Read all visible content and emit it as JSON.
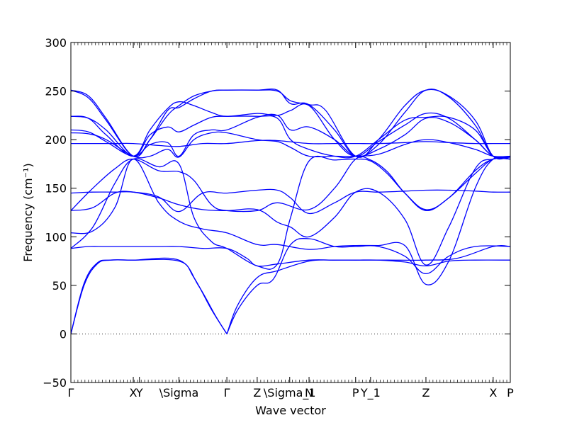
{
  "chart_data": {
    "type": "line",
    "xlabel": "Wave vector",
    "ylabel": "Frequency (cm⁻¹)",
    "ylim": [
      -50,
      300
    ],
    "yticks": [
      -50,
      0,
      50,
      100,
      150,
      200,
      250,
      300
    ],
    "grid": false,
    "legend": "none",
    "zero_reference_line": 0,
    "line_color": "#0000ff",
    "xlim": [
      0,
      100
    ],
    "high_symmetry_points": [
      {
        "label": "Γ",
        "x": 0
      },
      {
        "label": "X",
        "x": 14.2
      },
      {
        "label": "Y",
        "x": 15.6
      },
      {
        "label": "\\Sigma",
        "x": 24.6
      },
      {
        "label": "Γ",
        "x": 35.5
      },
      {
        "label": "Z",
        "x": 42.4
      },
      {
        "label": "\\Sigma_1",
        "x": 49.8
      },
      {
        "label": "N",
        "x": 54.2
      },
      {
        "label": "P",
        "x": 64.8
      },
      {
        "label": "Y_1",
        "x": 68.2
      },
      {
        "label": "Z",
        "x": 80.8
      },
      {
        "label": "X",
        "x": 96.1
      },
      {
        "label": "P",
        "x": 100
      }
    ],
    "series": [
      {
        "x": [
          0,
          3,
          6,
          9,
          14.2,
          24.6,
          29,
          33,
          35.5
        ],
        "y": [
          0,
          50,
          72,
          76,
          76,
          76,
          50,
          18,
          0
        ]
      },
      {
        "x": [
          0,
          3,
          6,
          9,
          14.2,
          24.6,
          28,
          32,
          35.5
        ],
        "y": [
          0,
          52,
          73,
          76,
          76,
          75,
          58,
          25,
          0
        ]
      },
      {
        "x": [
          35.5,
          38,
          42.4,
          47,
          54.2,
          60,
          64.8,
          70,
          76,
          80.8,
          86,
          92,
          100
        ],
        "y": [
          0,
          30,
          58,
          65,
          75,
          76,
          76,
          76,
          74,
          70,
          75,
          76,
          76
        ]
      },
      {
        "x": [
          35.5,
          38,
          42.4,
          46,
          50,
          54.2,
          60,
          64.8,
          70,
          76,
          80.8,
          86,
          92,
          100
        ],
        "y": [
          0,
          25,
          50,
          56,
          92,
          98,
          90,
          90,
          90,
          80,
          62,
          80,
          90,
          90
        ]
      },
      {
        "x": [
          0,
          4,
          8,
          14.2,
          20,
          24.6,
          30,
          35.5,
          40,
          42.4,
          47,
          54.2,
          60,
          64.8,
          72,
          80.8,
          88,
          96.1,
          100
        ],
        "y": [
          88,
          90,
          90,
          90,
          90,
          90,
          88,
          88,
          78,
          70,
          72,
          76,
          76,
          76,
          76,
          76,
          78,
          90,
          90
        ]
      },
      {
        "x": [
          0,
          5,
          10,
          14.2,
          20,
          24.6,
          30,
          35.5,
          42.4,
          47,
          54.2,
          60,
          64.8,
          70,
          76,
          80.8,
          86,
          92,
          96.1,
          100
        ],
        "y": [
          104,
          106,
          130,
          180,
          135,
          116,
          108,
          104,
          92,
          92,
          87,
          90,
          91,
          91,
          91,
          51,
          75,
          150,
          180,
          180
        ]
      },
      {
        "x": [
          0,
          5,
          10,
          14.2,
          20,
          24.6,
          30,
          35.5,
          42.4,
          47,
          50,
          54.2,
          60,
          64.8,
          70,
          76,
          80.8,
          86,
          92,
          96.1,
          100
        ],
        "y": [
          127,
          130,
          145,
          146,
          140,
          133,
          128,
          127,
          128,
          115,
          110,
          100,
          120,
          146,
          146,
          118,
          71,
          110,
          170,
          180,
          180
        ]
      },
      {
        "x": [
          0,
          5,
          10,
          14.2,
          20,
          24.6,
          30,
          35.5,
          42.4,
          47,
          50,
          54.2,
          60,
          64.8,
          70,
          76,
          80.8,
          86,
          92,
          96.1,
          100
        ],
        "y": [
          145,
          146,
          146,
          146,
          141,
          126,
          145,
          145,
          148,
          148,
          140,
          124,
          135,
          146,
          146,
          147,
          148,
          148,
          147,
          146,
          146
        ]
      },
      {
        "x": [
          0,
          5,
          10,
          14.2,
          20,
          24.6,
          28,
          32,
          35.5,
          42.4,
          47,
          54.2,
          60,
          64.8,
          68.2,
          72,
          76,
          80.8,
          86,
          92,
          96.1,
          100
        ],
        "y": [
          127,
          150,
          170,
          180,
          168,
          167,
          158,
          133,
          127,
          127,
          135,
          128,
          150,
          180,
          179,
          167,
          145,
          127,
          140,
          165,
          180,
          180
        ]
      },
      {
        "x": [
          0,
          5,
          10,
          14.2,
          20,
          24.6,
          28,
          32,
          35.5,
          42.4,
          47,
          50,
          54.2,
          60,
          64.8,
          68.2,
          72,
          76,
          80.8,
          86,
          92,
          96.1,
          100
        ],
        "y": [
          88,
          110,
          155,
          180,
          172,
          175,
          120,
          95,
          88,
          70,
          72,
          120,
          178,
          179,
          180,
          178,
          165,
          145,
          128,
          140,
          168,
          180,
          180
        ]
      },
      {
        "x": [
          0,
          4,
          8,
          14.2,
          18,
          22,
          24.6,
          28,
          32,
          35.5,
          42.4,
          47,
          50,
          54.2,
          60,
          64.8,
          70,
          76,
          80.8,
          86,
          92,
          96.1,
          100
        ],
        "y": [
          207,
          206,
          200,
          183,
          183,
          190,
          182,
          200,
          207,
          207,
          200,
          198,
          192,
          183,
          183,
          183,
          185,
          195,
          200,
          197,
          190,
          183,
          183
        ]
      },
      {
        "x": [
          0,
          4,
          8,
          14.2,
          18,
          22,
          24.6,
          28,
          32,
          35.5,
          42.4,
          47,
          50,
          54.2,
          60,
          64.8,
          70,
          76,
          80.8,
          86,
          92,
          96.1,
          100
        ],
        "y": [
          210,
          208,
          198,
          183,
          195,
          197,
          183,
          205,
          210,
          210,
          223,
          225,
          210,
          213,
          200,
          183,
          190,
          205,
          222,
          218,
          200,
          183,
          183
        ]
      },
      {
        "x": [
          0,
          4,
          8,
          14.2,
          18,
          22,
          24.6,
          28,
          32,
          35.5,
          42.4,
          47,
          50,
          54.2,
          60,
          64.8,
          70,
          76,
          80.8,
          86,
          92,
          96.1,
          100
        ],
        "y": [
          224,
          222,
          210,
          183,
          205,
          213,
          208,
          215,
          223,
          224,
          224,
          222,
          200,
          190,
          183,
          183,
          200,
          220,
          223,
          223,
          210,
          183,
          182
        ]
      },
      {
        "x": [
          0,
          4,
          8,
          14.2,
          18,
          22,
          24.6,
          28,
          32,
          35.5,
          42.4,
          47,
          50,
          54.2,
          60,
          64.8,
          70,
          76,
          80.8,
          86,
          92,
          96.1,
          100
        ],
        "y": [
          224,
          222,
          205,
          183,
          210,
          232,
          239,
          235,
          228,
          224,
          227,
          225,
          230,
          235,
          200,
          183,
          198,
          215,
          227,
          222,
          200,
          183,
          182
        ]
      },
      {
        "x": [
          0,
          4,
          8,
          14.2,
          18,
          22,
          24.6,
          28,
          32,
          35.5,
          42.4,
          47,
          50,
          54.2,
          58,
          64.8,
          70,
          76,
          80.8,
          86,
          92,
          96.1,
          100
        ],
        "y": [
          251,
          245,
          222,
          183,
          200,
          225,
          235,
          245,
          250,
          251,
          251,
          250,
          240,
          236,
          230,
          183,
          200,
          235,
          251,
          245,
          220,
          183,
          183
        ]
      },
      {
        "x": [
          0,
          4,
          8,
          14.2,
          18,
          22,
          24.6,
          28,
          32,
          35.5,
          42.4,
          47,
          50,
          54.2,
          60,
          64.8,
          70,
          76,
          80.8,
          86,
          92,
          96.1,
          100
        ],
        "y": [
          251,
          243,
          220,
          183,
          200,
          230,
          233,
          242,
          250,
          251,
          251,
          251,
          237,
          236,
          210,
          183,
          195,
          228,
          251,
          244,
          215,
          183,
          183
        ]
      },
      {
        "x": [
          0,
          5,
          10,
          14.2,
          20,
          24.6,
          30,
          35.5,
          42.4,
          47,
          54.2,
          60,
          64.8,
          70,
          76,
          80.8,
          86,
          92,
          96.1,
          100
        ],
        "y": [
          196,
          196,
          196,
          196,
          194,
          193,
          196,
          196,
          199,
          199,
          196,
          196,
          196,
          196,
          197,
          198,
          197,
          196,
          196,
          196
        ]
      }
    ]
  }
}
